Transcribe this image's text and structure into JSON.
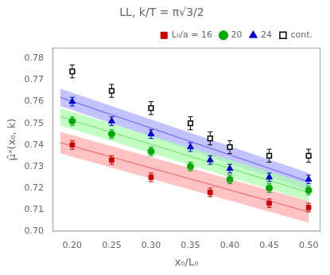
{
  "chart_data": {
    "type": "scatter",
    "title": "LL, k/T = π√3/2",
    "xlabel": "x₀/L₀",
    "ylabel": "μ̂ˣ(x₀, k)",
    "xlim": [
      0.175,
      0.515
    ],
    "ylim": [
      0.7,
      0.785
    ],
    "xticks": [
      {
        "value": 0.2,
        "label": "0.20"
      },
      0.25,
      {
        "value": 0.3,
        "label": "0.30"
      },
      0.35,
      {
        "value": 0.4,
        "label": "0.40"
      },
      0.45,
      {
        "value": 0.5,
        "label": "0.50"
      }
    ],
    "yticks": [
      {
        "value": 0.7,
        "label": "0.70"
      },
      0.71,
      0.72,
      0.73,
      0.74,
      0.75,
      0.76,
      0.77,
      0.78
    ],
    "grid": false,
    "legend": "upper right",
    "series": [
      {
        "name": "L₀/a = 16",
        "color": "#cc0000",
        "marker": "square",
        "x": [
          0.2,
          0.25,
          0.3,
          0.375,
          0.45,
          0.5
        ],
        "values": [
          0.74,
          0.733,
          0.725,
          0.718,
          0.713,
          0.711
        ],
        "errors": [
          0.002,
          0.002,
          0.002,
          0.002,
          0.002,
          0.002
        ],
        "fit": {
          "x": [
            0.185,
            0.5
          ],
          "values": [
            0.741,
            0.709
          ],
          "lower": [
            0.736,
            0.704
          ],
          "upper": [
            0.746,
            0.714
          ],
          "color": "#ffaaaa"
        }
      },
      {
        "name": "20",
        "color": "#00aa00",
        "marker": "circle",
        "x": [
          0.2,
          0.25,
          0.3,
          0.35,
          0.4,
          0.45,
          0.5
        ],
        "values": [
          0.751,
          0.745,
          0.737,
          0.73,
          0.724,
          0.72,
          0.719
        ],
        "errors": [
          0.002,
          0.002,
          0.002,
          0.002,
          0.002,
          0.002,
          0.002
        ],
        "fit": {
          "x": [
            0.185,
            0.5
          ],
          "values": [
            0.753,
            0.718
          ],
          "lower": [
            0.749,
            0.714
          ],
          "upper": [
            0.757,
            0.722
          ],
          "color": "#aaffaa"
        }
      },
      {
        "name": "24",
        "color": "#0000cc",
        "marker": "triangle",
        "x": [
          0.2,
          0.25,
          0.3,
          0.35,
          0.375,
          0.4,
          0.45,
          0.5
        ],
        "values": [
          0.76,
          0.751,
          0.745,
          0.739,
          0.733,
          0.729,
          0.725,
          0.724
        ],
        "errors": [
          0.002,
          0.002,
          0.002,
          0.002,
          0.002,
          0.002,
          0.002,
          0.002
        ],
        "fit": {
          "x": [
            0.185,
            0.5
          ],
          "values": [
            0.762,
            0.723
          ],
          "lower": [
            0.758,
            0.719
          ],
          "upper": [
            0.766,
            0.727
          ],
          "color": "#aaaaff"
        }
      },
      {
        "name": "cont.",
        "color": "#000000",
        "marker": "open_square",
        "x": [
          0.2,
          0.25,
          0.3,
          0.35,
          0.375,
          0.4,
          0.45,
          0.5
        ],
        "values": [
          0.774,
          0.765,
          0.757,
          0.75,
          0.743,
          0.739,
          0.735,
          0.735
        ],
        "errors": [
          0.003,
          0.003,
          0.003,
          0.003,
          0.003,
          0.003,
          0.003,
          0.003
        ]
      }
    ]
  }
}
